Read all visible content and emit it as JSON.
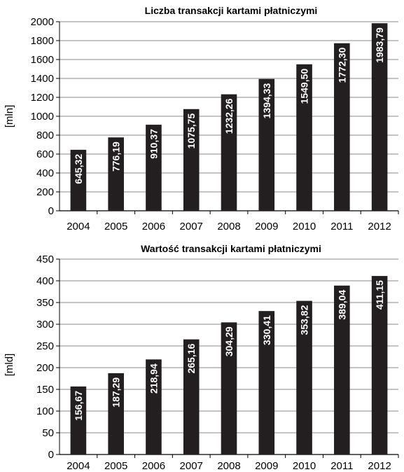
{
  "chart_data": [
    {
      "type": "bar",
      "title": "Liczba transakcji kartami płatniczymi",
      "ylabel": "[mln]",
      "xlabel": "",
      "categories": [
        "2004",
        "2005",
        "2006",
        "2007",
        "2008",
        "2009",
        "2010",
        "2011",
        "2012"
      ],
      "values": [
        645.32,
        776.19,
        910.37,
        1075.75,
        1232.26,
        1394.33,
        1549.5,
        1772.3,
        1983.79
      ],
      "value_labels": [
        "645,32",
        "776,19",
        "910,37",
        "1075,75",
        "1232,26",
        "1394,33",
        "1549,50",
        "1772,30",
        "1983,79"
      ],
      "ylim": [
        0,
        2000
      ],
      "yticks": [
        0,
        200,
        400,
        600,
        800,
        1000,
        1200,
        1400,
        1600,
        1800,
        2000
      ],
      "grid": true,
      "bar_color": "#231f20",
      "label_color": "#ffffff"
    },
    {
      "type": "bar",
      "title": "Wartość transakcji kartami płatniczymi",
      "ylabel": "[mld]",
      "xlabel": "",
      "categories": [
        "2004",
        "2005",
        "2006",
        "2007",
        "2008",
        "2009",
        "2010",
        "2011",
        "2012"
      ],
      "values": [
        156.67,
        187.29,
        218.94,
        265.16,
        304.29,
        330.41,
        353.82,
        389.04,
        411.15
      ],
      "value_labels": [
        "156,67",
        "187,29",
        "218,94",
        "265,16",
        "304,29",
        "330,41",
        "353,82",
        "389,04",
        "411,15"
      ],
      "ylim": [
        0,
        450
      ],
      "yticks": [
        0,
        50,
        100,
        150,
        200,
        250,
        300,
        350,
        400,
        450
      ],
      "grid": true,
      "bar_color": "#231f20",
      "label_color": "#ffffff"
    }
  ]
}
